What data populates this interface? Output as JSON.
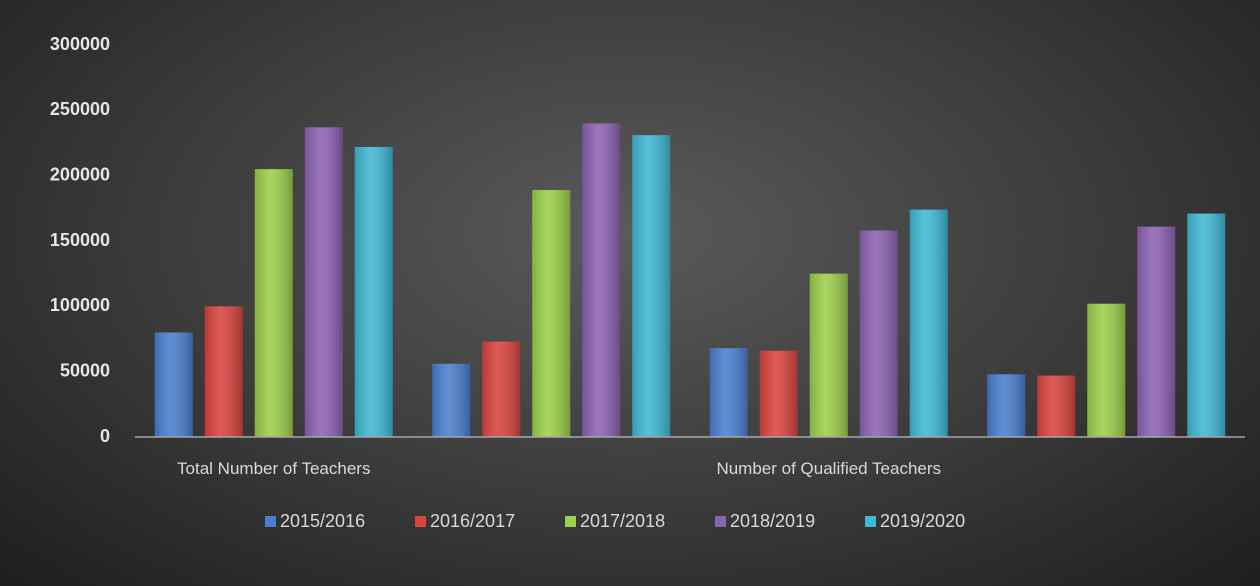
{
  "chart_data": {
    "type": "bar",
    "categories": [
      "Total Number of Teachers",
      null,
      "Number of Qualified Teachers",
      null
    ],
    "series": [
      {
        "name": "2015/2016",
        "color": "#4a7fcf",
        "values": [
          80000,
          56000,
          68000,
          48000
        ]
      },
      {
        "name": "2016/2017",
        "color": "#d9443f",
        "values": [
          100000,
          73000,
          66000,
          47000
        ]
      },
      {
        "name": "2017/2018",
        "color": "#9ccf4a",
        "values": [
          205000,
          189000,
          125000,
          102000
        ]
      },
      {
        "name": "2018/2019",
        "color": "#8c62b3",
        "values": [
          237000,
          240000,
          158000,
          161000
        ]
      },
      {
        "name": "2019/2020",
        "color": "#3fb8d4",
        "values": [
          222000,
          231000,
          174000,
          171000
        ]
      }
    ],
    "ylim": [
      0,
      300000
    ],
    "yticks": [
      0,
      50000,
      100000,
      150000,
      200000,
      250000,
      300000
    ],
    "grid": false,
    "legend": "bottom"
  }
}
